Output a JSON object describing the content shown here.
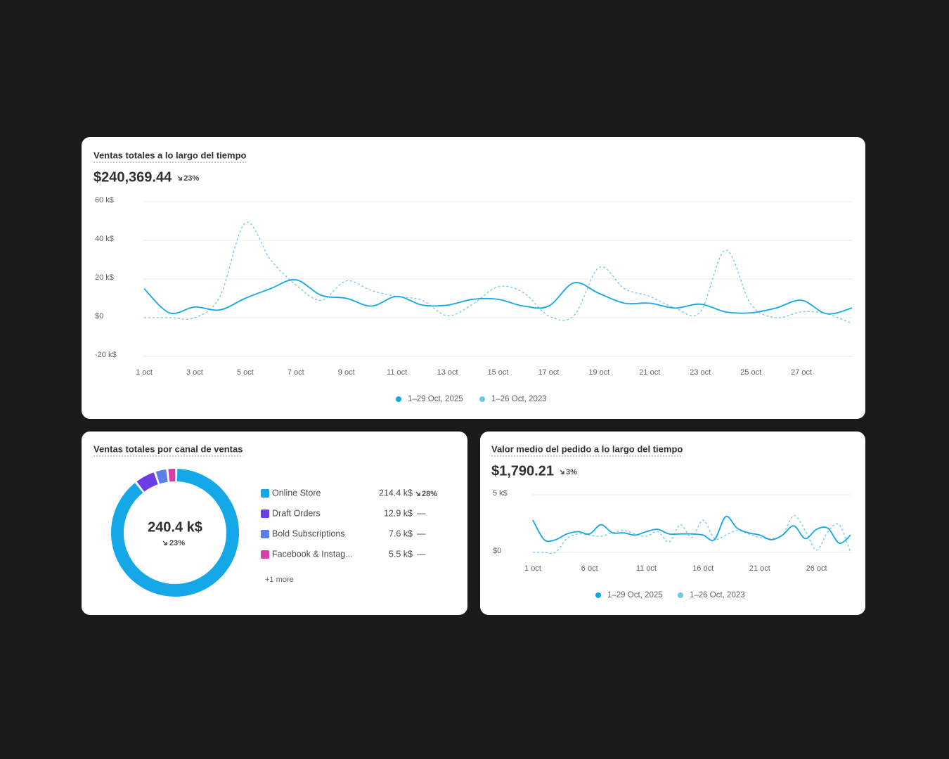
{
  "chart_data": [
    {
      "type": "line",
      "title": "Ventas totales a lo largo del tiempo",
      "total": "$240,369.44",
      "change": "23%",
      "categories": [
        "1 oct",
        null,
        "3 oct",
        null,
        "5 oct",
        null,
        "7 oct",
        null,
        "9 oct",
        null,
        "11 oct",
        null,
        "13 oct",
        null,
        "15 oct",
        null,
        "17 oct",
        null,
        "19 oct",
        null,
        "21 oct",
        null,
        "23 oct",
        null,
        "25 oct",
        null,
        "27 oct",
        null,
        null
      ],
      "series": [
        {
          "name": "1–29 Oct, 2025",
          "color": "#13a6e6",
          "dash": false,
          "values": [
            15,
            2.5,
            5.5,
            4,
            10,
            15,
            19.6,
            11.6,
            10,
            6,
            11,
            6.5,
            6.5,
            9.5,
            9.5,
            6,
            6,
            18,
            12.5,
            7.5,
            7.5,
            5,
            7,
            3,
            2.5,
            5,
            9,
            2,
            5
          ]
        },
        {
          "name": "1–26 Oct, 2023",
          "color": "#6ec6ea",
          "dash": true,
          "values": [
            0,
            0,
            0,
            11,
            49,
            30,
            17,
            9,
            19,
            14,
            11,
            9,
            1,
            7,
            16,
            13,
            1,
            1,
            26,
            15,
            11,
            5,
            3,
            35,
            7,
            0,
            3,
            2,
            -3
          ]
        }
      ],
      "ylim": [
        -20,
        60
      ],
      "yticks": [
        {
          "value": -20,
          "label": "-20 k$"
        },
        {
          "value": 0,
          "label": "$0"
        },
        {
          "value": 20,
          "label": "20 k$"
        },
        {
          "value": 40,
          "label": "40 k$"
        },
        {
          "value": 60,
          "label": "60 k$"
        }
      ],
      "grid": true
    },
    {
      "type": "donut",
      "title": "Ventas totales por canal de ventas",
      "total": "240.4 k$",
      "change": "23%",
      "categories": [
        "Online Store",
        "Draft Orders",
        "Bold Subscriptions",
        "Facebook & Instag..."
      ],
      "values": [
        214.4,
        12.9,
        7.6,
        5.5
      ],
      "value_labels": [
        "214.4 k$",
        "12.9 k$",
        "7.6 k$",
        "5.5 k$"
      ],
      "changes": [
        "28%",
        "—",
        "—",
        "—"
      ],
      "colors": [
        "#14a8e8",
        "#6a3de8",
        "#5b7fe6",
        "#d63fa8"
      ],
      "more": "+1 more"
    },
    {
      "type": "line",
      "title": "Valor medio del pedido a lo largo del tiempo",
      "total": "$1,790.21",
      "change": "3%",
      "categories": [
        "1 oct",
        null,
        null,
        null,
        null,
        "6 oct",
        null,
        null,
        null,
        null,
        "11 oct",
        null,
        null,
        null,
        null,
        "16 oct",
        null,
        null,
        null,
        null,
        "21 oct",
        null,
        null,
        null,
        null,
        "26 oct",
        null,
        null,
        null
      ],
      "series": [
        {
          "name": "1–29 Oct, 2025",
          "color": "#13a6e6",
          "dash": false,
          "values": [
            2.8,
            1.1,
            1.1,
            1.6,
            1.8,
            1.6,
            2.4,
            1.7,
            1.7,
            1.5,
            1.8,
            2.0,
            1.6,
            1.6,
            1.6,
            1.5,
            1.1,
            3.1,
            2.1,
            1.7,
            1.5,
            1.1,
            1.5,
            2.3,
            1.2,
            2.0,
            2.1,
            0.8,
            1.5
          ]
        },
        {
          "name": "1–26 Oct, 2023",
          "color": "#6ec6ea",
          "dash": true,
          "values": [
            0,
            0,
            0,
            1.2,
            1.6,
            1.5,
            1.4,
            1.7,
            1.9,
            1.6,
            1.4,
            1.8,
            0.9,
            2.4,
            1.3,
            2.8,
            1.2,
            1.5,
            1.9,
            1.6,
            1.3,
            1.2,
            1.5,
            3.2,
            1.9,
            0.2,
            1.8,
            2.4,
            0
          ]
        }
      ],
      "ylim": [
        0,
        5
      ],
      "yticks": [
        {
          "value": 0,
          "label": "$0"
        },
        {
          "value": 5,
          "label": "5 k$"
        }
      ],
      "grid": true
    }
  ]
}
